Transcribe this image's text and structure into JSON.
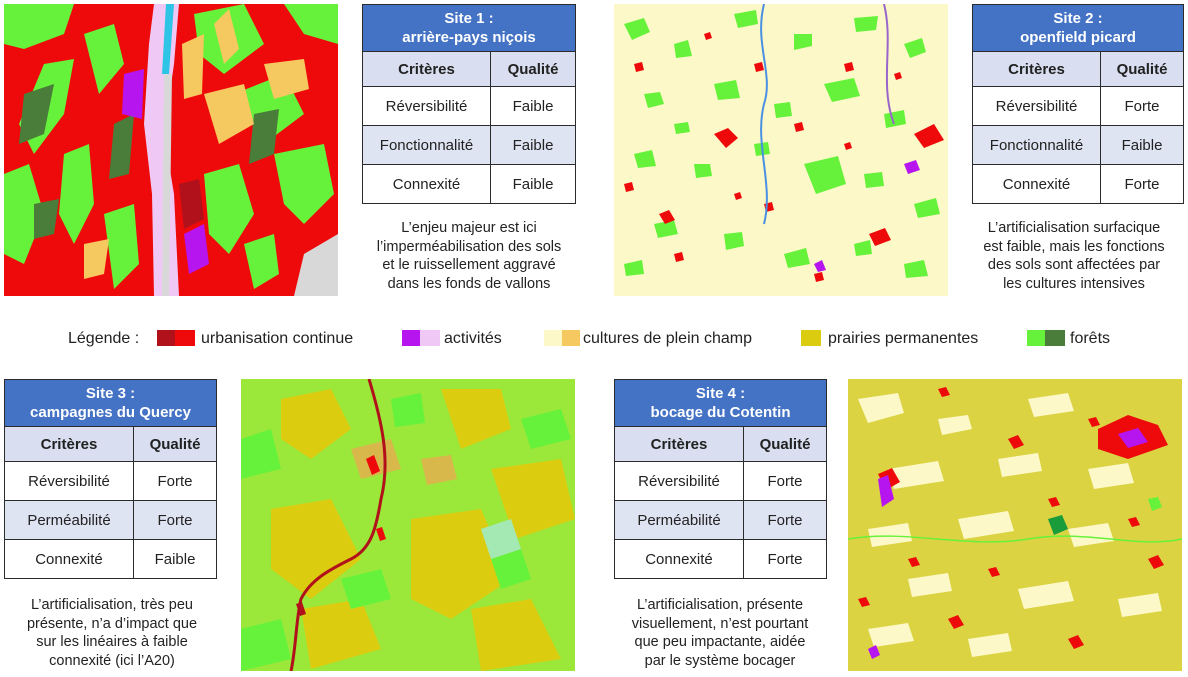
{
  "legend": {
    "title": "Légende :",
    "items": [
      {
        "label": "urbanisation continue",
        "colors": [
          "#b0111b",
          "#ee0a0a"
        ]
      },
      {
        "label": "activités",
        "colors": [
          "#b715f0",
          "#f0c8f5"
        ]
      },
      {
        "label": "cultures de plein champ",
        "colors": [
          "#fdf8c8",
          "#f6c860"
        ]
      },
      {
        "label": "prairies permanentes",
        "colors": [
          "#dbcc10"
        ]
      },
      {
        "label": "forêts",
        "colors": [
          "#66f23a",
          "#4a7d3a"
        ]
      }
    ]
  },
  "table_headers": {
    "criteria": "Critères",
    "quality": "Qualité"
  },
  "sites": [
    {
      "title_line1": "Site 1 :",
      "title_line2": "arrière-pays niçois",
      "rows": [
        {
          "criterion": "Réversibilité",
          "quality": "Faible"
        },
        {
          "criterion": "Fonctionnalité",
          "quality": "Faible"
        },
        {
          "criterion": "Connexité",
          "quality": "Faible"
        }
      ],
      "caption": [
        "L’enjeu majeur est ici",
        "l’imperméabilisation des sols",
        "et le ruissellement aggravé",
        "dans les fonds de vallons"
      ]
    },
    {
      "title_line1": "Site 2 :",
      "title_line2": "openfield picard",
      "rows": [
        {
          "criterion": "Réversibilité",
          "quality": "Forte"
        },
        {
          "criterion": "Fonctionnalité",
          "quality": "Faible"
        },
        {
          "criterion": "Connexité",
          "quality": "Forte"
        }
      ],
      "caption": [
        "L’artificialisation surfacique",
        "est faible, mais les fonctions",
        "des sols sont affectées par",
        "les cultures intensives"
      ]
    },
    {
      "title_line1": "Site 3 :",
      "title_line2": "campagnes du Quercy",
      "rows": [
        {
          "criterion": "Réversibilité",
          "quality": "Forte"
        },
        {
          "criterion": "Perméabilité",
          "quality": "Forte"
        },
        {
          "criterion": "Connexité",
          "quality": "Faible"
        }
      ],
      "caption": [
        "L’artificialisation, très peu",
        "présente, n’a d’impact que",
        "sur les linéaires à faible",
        "connexité (ici l’A20)"
      ]
    },
    {
      "title_line1": "Site 4 :",
      "title_line2": "bocage du Cotentin",
      "rows": [
        {
          "criterion": "Réversibilité",
          "quality": "Forte"
        },
        {
          "criterion": "Perméabilité",
          "quality": "Forte"
        },
        {
          "criterion": "Connexité",
          "quality": "Forte"
        }
      ],
      "caption": [
        "L’artificialisation, présente",
        "visuellement, n’est pourtant",
        "que peu impactante, aidée",
        "par le système bocager"
      ]
    }
  ]
}
